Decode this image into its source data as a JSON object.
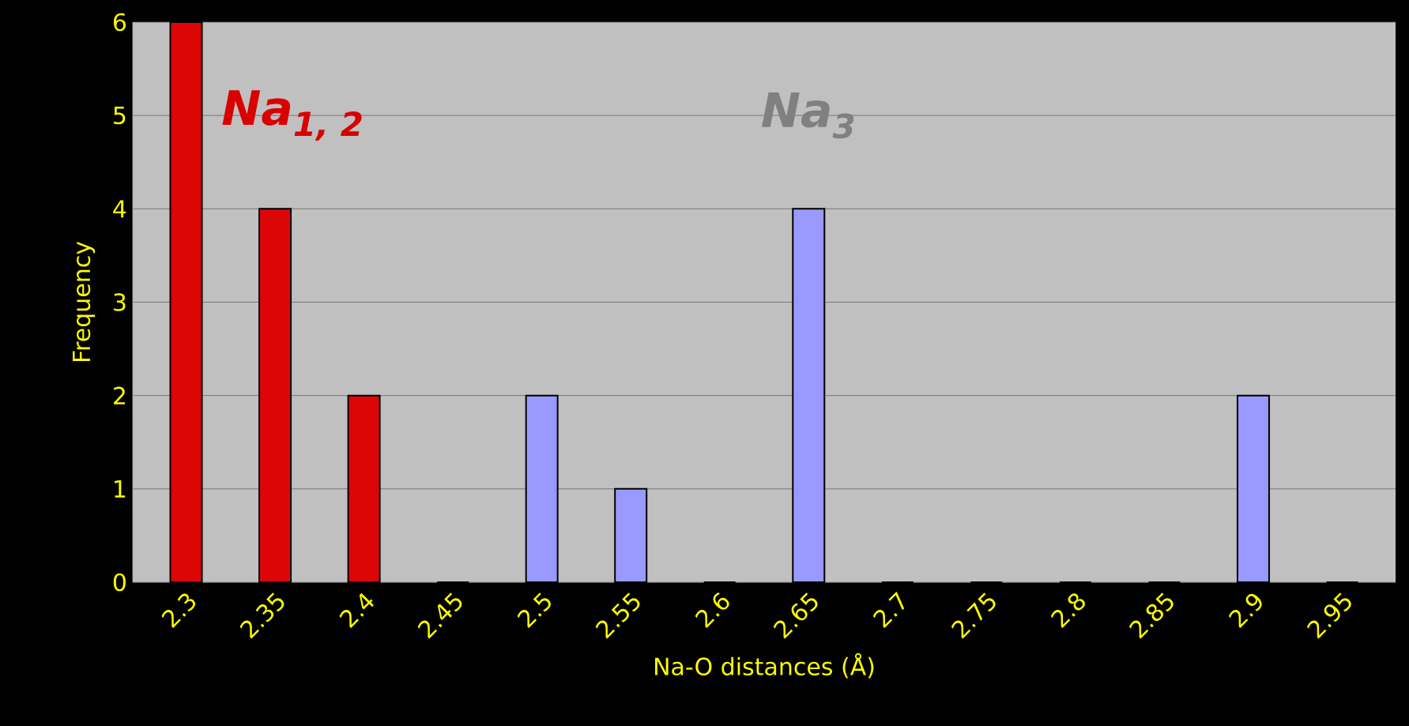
{
  "chart_data": {
    "type": "bar",
    "categories": [
      "2.3",
      "2.35",
      "2.4",
      "2.45",
      "2.5",
      "2.55",
      "2.6",
      "2.65",
      "2.7",
      "2.75",
      "2.8",
      "2.85",
      "2.9",
      "2.95"
    ],
    "values": [
      6,
      4,
      2,
      0,
      2,
      1,
      0,
      4,
      0,
      0,
      0,
      0,
      2,
      0
    ],
    "colors": [
      "#dd0606",
      "#dd0606",
      "#dd0606",
      "#9999ff",
      "#9999ff",
      "#9999ff",
      "#9999ff",
      "#9999ff",
      "#9999ff",
      "#9999ff",
      "#9999ff",
      "#9999ff",
      "#9999ff",
      "#9999ff"
    ],
    "xlabel": "Na-O distances (Å)",
    "ylabel": "Frequency",
    "ylim": [
      0,
      6
    ],
    "yticks": [
      0,
      1,
      2,
      3,
      4,
      5,
      6
    ],
    "grid": "y",
    "annotations": [
      "Na$_{1, 2}$",
      "Na$_{3}$"
    ]
  }
}
